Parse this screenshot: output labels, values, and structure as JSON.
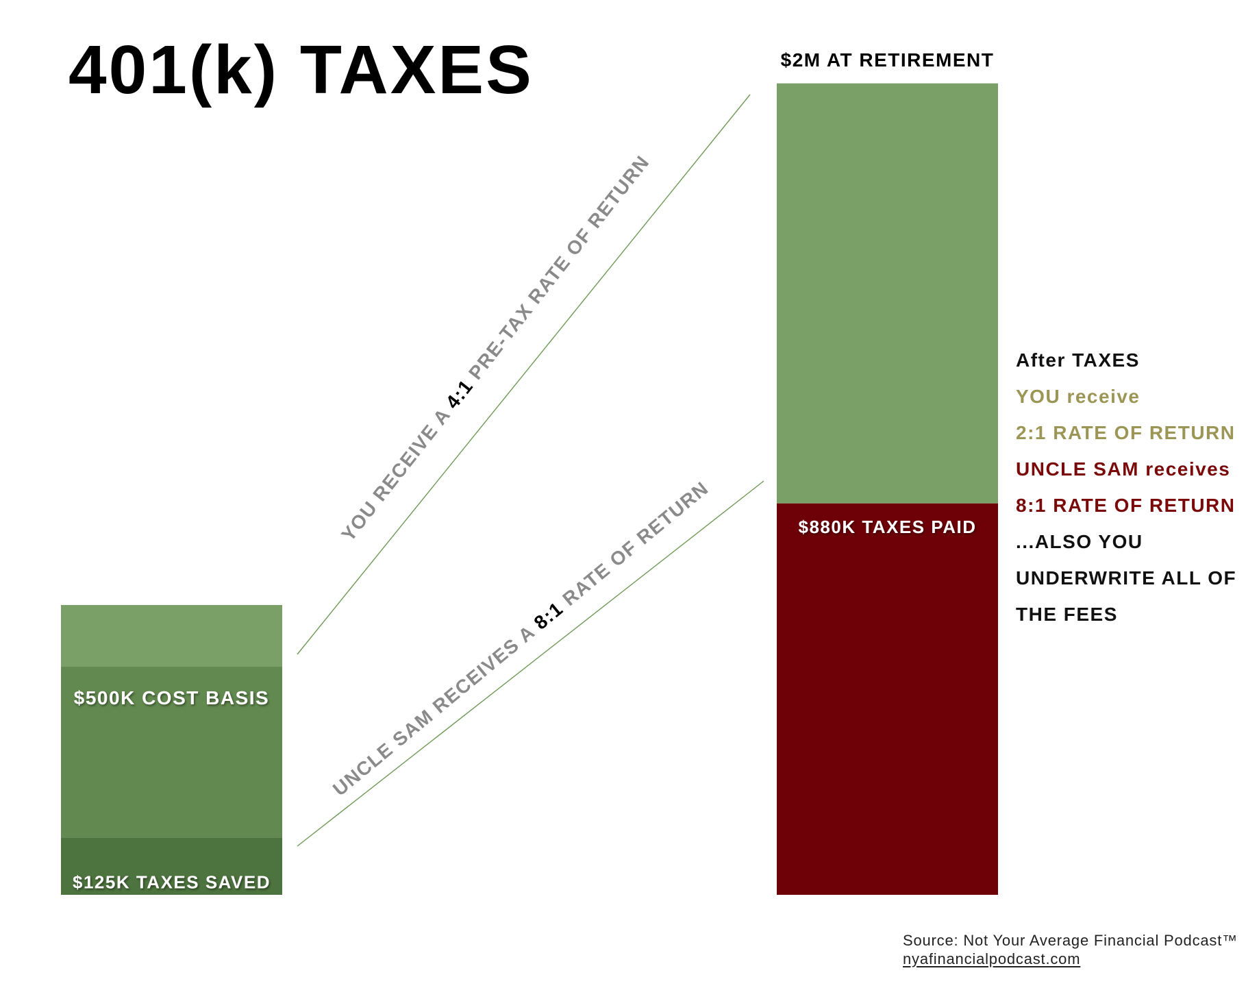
{
  "title": "401(k) TAXES",
  "colors": {
    "light_green": "#7aa068",
    "green": "#62894f",
    "dark_green": "#4d733e",
    "maroon": "#6e0007",
    "gray_text": "#8a8a8a",
    "olive_text": "#9c9656",
    "maroon_text": "#7a0a0a",
    "line_color": "#6f9a58"
  },
  "chart_data": {
    "type": "bar",
    "stacked": true,
    "units": "$K",
    "categories": [
      "",
      "$2M AT RETIREMENT"
    ],
    "bars": [
      {
        "label": "",
        "total": 500,
        "segments": [
          {
            "label": "$125K TAXES SAVED",
            "value": 125,
            "color": "#4d733e"
          },
          {
            "label": "$500K COST BASIS",
            "value": 375,
            "color": "#62894f"
          }
        ],
        "top_band_color": "#7aa068"
      },
      {
        "label": "$2M AT RETIREMENT",
        "total": 2000,
        "segments": [
          {
            "label": "$880K TAXES PAID",
            "value": 880,
            "color": "#6e0007"
          },
          {
            "label": "",
            "value": 1120,
            "color": "#7aa068"
          }
        ]
      }
    ],
    "annotations": [
      {
        "prefix": "YOU RECEIVE A ",
        "ratio": "4:1",
        "suffix": " PRE-TAX RATE OF RETURN"
      },
      {
        "prefix": "UNCLE SAM RECEIVES A ",
        "ratio": "8:1",
        "suffix": " RATE OF RETURN"
      }
    ],
    "grid": false,
    "legend": "none"
  },
  "side_notes": [
    {
      "text": "After TAXES",
      "color": "#111111"
    },
    {
      "text": "YOU receive",
      "color": "#9c9656"
    },
    {
      "text": "2:1 RATE OF RETURN",
      "color": "#9c9656"
    },
    {
      "text": "UNCLE SAM receives",
      "color": "#7a0a0a"
    },
    {
      "text": "8:1 RATE OF RETURN",
      "color": "#7a0a0a"
    },
    {
      "text": "...ALSO YOU",
      "color": "#111111"
    },
    {
      "text": "UNDERWRITE ALL OF",
      "color": "#111111"
    },
    {
      "text": "THE FEES",
      "color": "#111111"
    }
  ],
  "source": {
    "line1": "Source: Not Your Average Financial Podcast™",
    "url": "nyafinancialpodcast.com"
  }
}
